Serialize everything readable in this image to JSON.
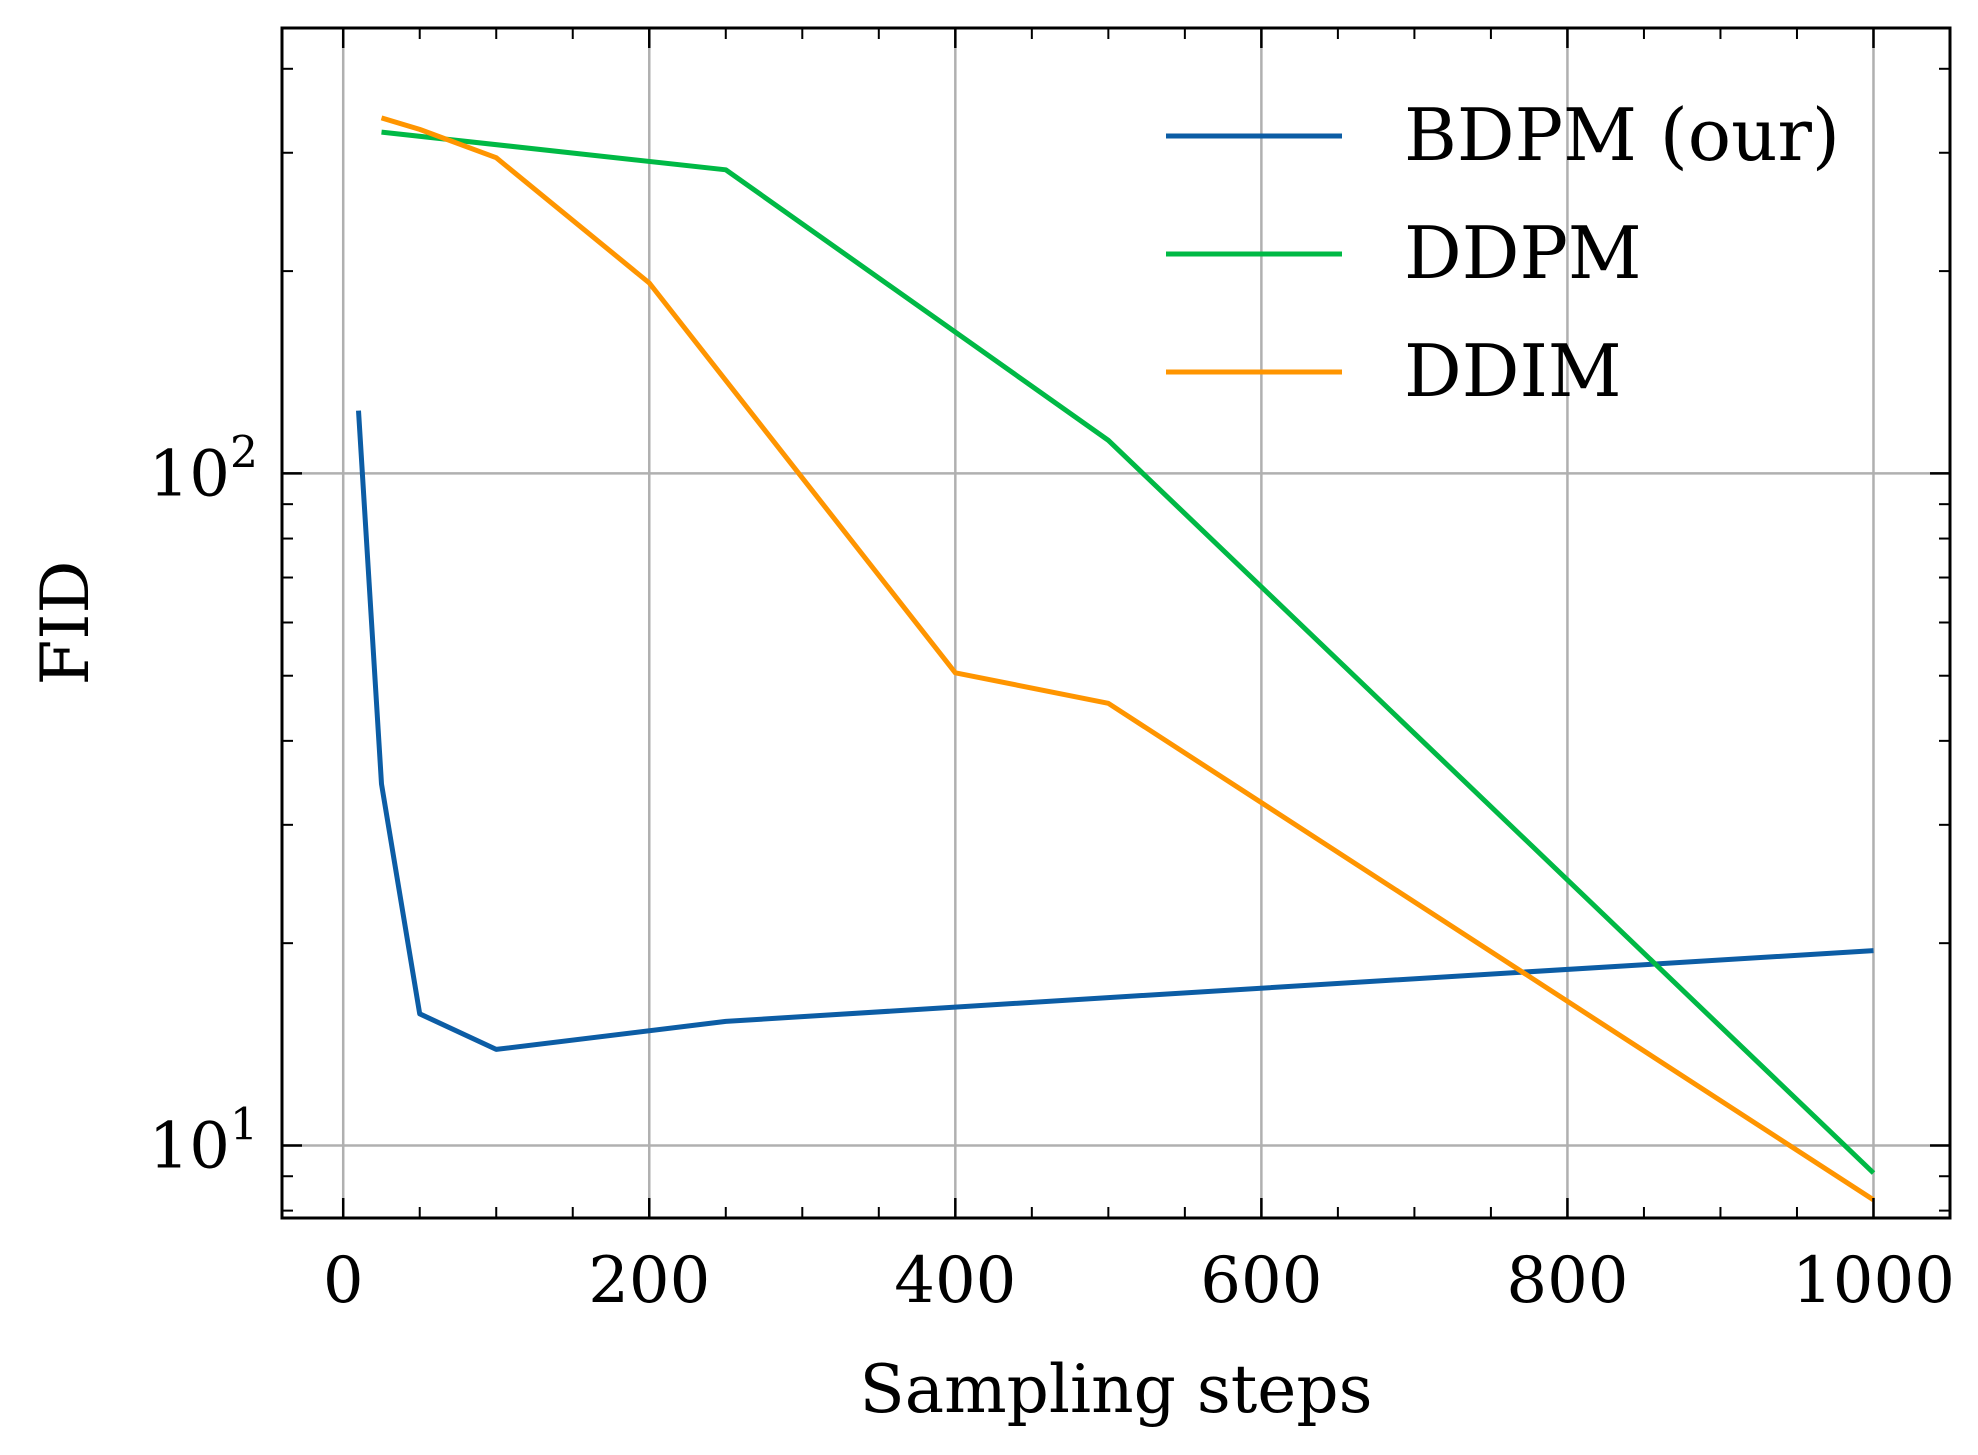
{
  "chart_data": {
    "type": "line",
    "xlabel": "Sampling steps",
    "ylabel": "FID",
    "xlim": [
      -40,
      1050
    ],
    "ylim": [
      7.8,
      460
    ],
    "yscale": "log",
    "xticks": [
      {
        "value": 0,
        "label": "0"
      },
      {
        "value": 200,
        "label": "200"
      },
      {
        "value": 400,
        "label": "400"
      },
      {
        "value": 600,
        "label": "600"
      },
      {
        "value": 800,
        "label": "800"
      },
      {
        "value": 1000,
        "label": "1000"
      }
    ],
    "yticks": [
      {
        "value": 10,
        "base": "10",
        "exp": "1"
      },
      {
        "value": 100,
        "base": "10",
        "exp": "2"
      }
    ],
    "grid": true,
    "legend_position": "top-right",
    "series": [
      {
        "name": "BDPM (our)",
        "color": "#0C5DA5",
        "x": [
          10,
          25,
          50,
          100,
          250,
          500,
          1000
        ],
        "y": [
          124,
          34.5,
          15.7,
          13.9,
          15.3,
          16.6,
          19.5
        ]
      },
      {
        "name": "DDPM",
        "color": "#00B945",
        "x": [
          25,
          250,
          500,
          1000
        ],
        "y": [
          322,
          283,
          112,
          9.1
        ]
      },
      {
        "name": "DDIM",
        "color": "#FF9500",
        "x": [
          25,
          50,
          100,
          200,
          400,
          500,
          1000
        ],
        "y": [
          338,
          325,
          295,
          192,
          50.5,
          45.5,
          8.3
        ]
      }
    ]
  }
}
